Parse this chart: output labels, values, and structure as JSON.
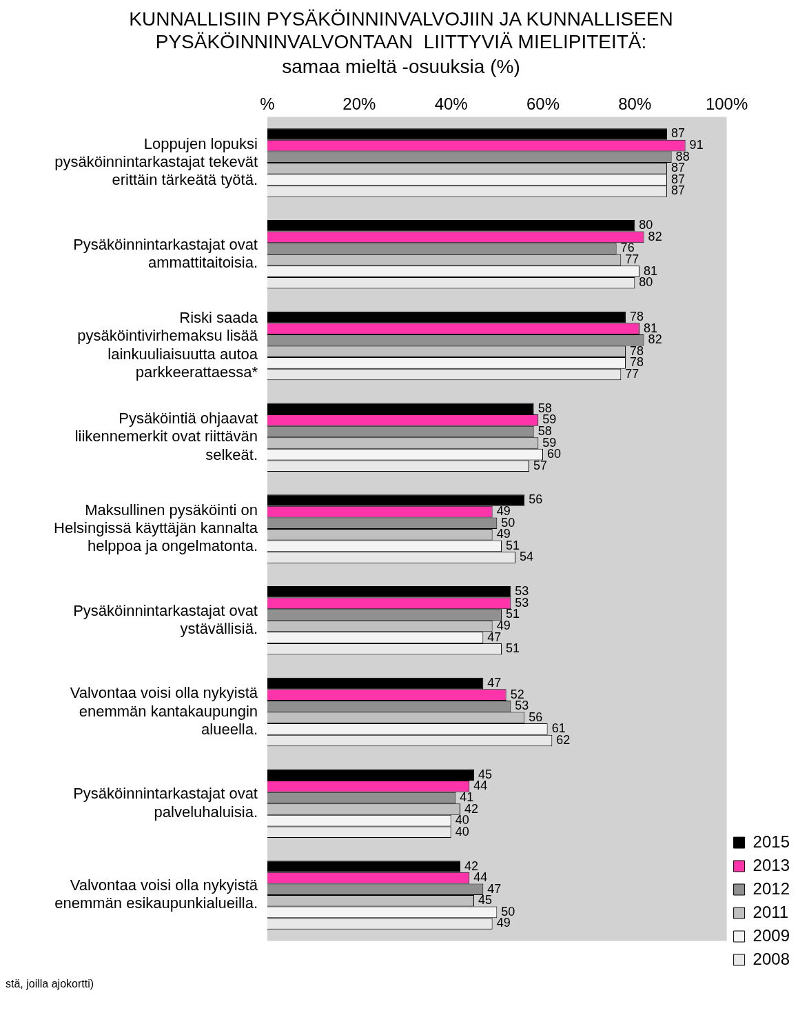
{
  "chart_data": {
    "type": "bar",
    "orientation": "horizontal",
    "title": "KUNNALLISIIN PYSÄKÖINNINVALVOJIIN JA KUNNALLISEEN PYSÄKÖINNINVALVONTAAN  LIITTYVIÄ MIELIPITEITÄ:",
    "subtitle": "samaa mieltä -osuuksia (%)",
    "categories": [
      "Loppujen lopuksi pysäköinnintarkastajat tekevät erittäin tärkeätä työtä.",
      "Pysäköinnintarkastajat ovat ammattitaitoisia.",
      "Riski saada pysäköintivirhemaksu lisää lainkuuliaisuutta autoa parkkeerattaessa*",
      "Pysäköintiä ohjaavat liikennemerkit ovat riittävän selkeät.",
      "Maksullinen pysäköinti on Helsingissä käyttäjän kannalta helppoa ja ongelmatonta.",
      "Pysäköinnintarkastajat ovat ystävällisiä.",
      "Valvontaa voisi olla nykyistä enemmän kantakaupungin alueella.",
      "Pysäköinnintarkastajat ovat palveluhaluisia.",
      "Valvontaa voisi olla nykyistä enemmän esikaupunkialueilla."
    ],
    "series": [
      {
        "name": "2015",
        "color": "#000000",
        "values": [
          87,
          80,
          78,
          58,
          56,
          53,
          47,
          45,
          42
        ]
      },
      {
        "name": "2013",
        "color": "#ff33aa",
        "values": [
          91,
          82,
          81,
          59,
          49,
          53,
          52,
          44,
          44
        ]
      },
      {
        "name": "2012",
        "color": "#909090",
        "values": [
          88,
          76,
          82,
          58,
          50,
          51,
          53,
          41,
          47
        ]
      },
      {
        "name": "2011",
        "color": "#c0c0c0",
        "values": [
          87,
          77,
          78,
          59,
          49,
          49,
          56,
          42,
          45
        ]
      },
      {
        "name": "2009",
        "color": "#f4f4f4",
        "values": [
          87,
          81,
          78,
          60,
          51,
          47,
          61,
          40,
          50
        ]
      },
      {
        "name": "2008",
        "color": "#e8e8e8",
        "values": [
          87,
          80,
          77,
          57,
          54,
          51,
          62,
          40,
          49
        ]
      }
    ],
    "xlim": [
      0,
      100
    ],
    "xticks": [
      {
        "value": 0,
        "label": "%"
      },
      {
        "value": 20,
        "label": "20%"
      },
      {
        "value": 40,
        "label": "40%"
      },
      {
        "value": 60,
        "label": "60%"
      },
      {
        "value": 80,
        "label": "80%"
      },
      {
        "value": 100,
        "label": "100%"
      }
    ],
    "grid": false,
    "legend": "bottom right",
    "data_labels": true,
    "annotations": [
      "stä, joilla ajokortti)"
    ]
  }
}
